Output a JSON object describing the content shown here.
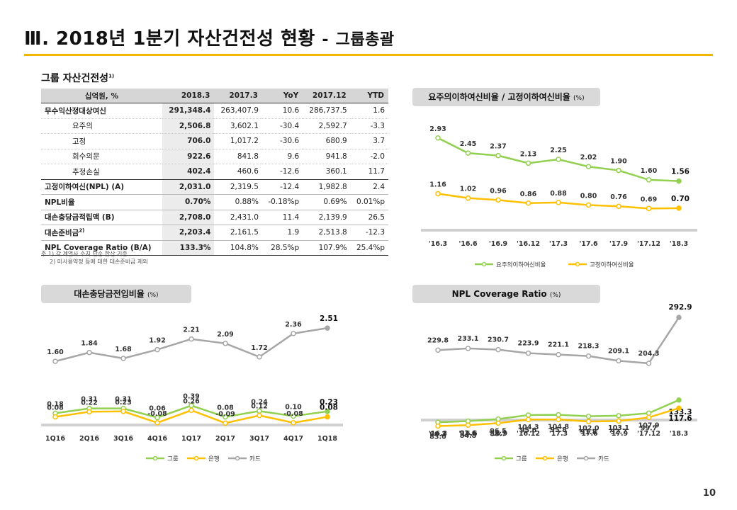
{
  "page": {
    "title": "Ⅲ. 2018년 1분기 자산건전성 현황",
    "title_sep": "-",
    "subtitle": "그룹총괄",
    "section_label": "그룹 자산건전성",
    "section_label_sup": "1)",
    "page_number": "10",
    "accent_color": "#f2b700"
  },
  "asset_table": {
    "headers": [
      "십억원, %",
      "2018.3",
      "2017.3",
      "YoY",
      "2017.12",
      "YTD"
    ],
    "rows": [
      {
        "label": "무수익산정대상여신",
        "values": [
          "291,348.4",
          "263,407.9",
          "10.6",
          "286,737.5",
          "1.6"
        ]
      },
      {
        "label": "요주의",
        "values": [
          "2,506.8",
          "3,602.1",
          "-30.4",
          "2,592.7",
          "-3.3"
        ]
      },
      {
        "label": "고정",
        "values": [
          "706.0",
          "1,017.2",
          "-30.6",
          "680.9",
          "3.7"
        ]
      },
      {
        "label": "회수의문",
        "values": [
          "922.6",
          "841.8",
          "9.6",
          "941.8",
          "-2.0"
        ]
      },
      {
        "label": "추정손실",
        "values": [
          "402.4",
          "460.6",
          "-12.6",
          "360.1",
          "11.7"
        ]
      },
      {
        "label": "고정이하여신(NPL) (A)",
        "values": [
          "2,031.0",
          "2,319.5",
          "-12.4",
          "1,982.8",
          "2.4"
        ]
      },
      {
        "label": "NPL비율",
        "values": [
          "0.70%",
          "0.88%",
          "-0.18%p",
          "0.69%",
          "0.01%p"
        ]
      },
      {
        "label": "대손충당금적립액 (B)",
        "values": [
          "2,708.0",
          "2,431.0",
          "11.4",
          "2,139.9",
          "26.5"
        ]
      },
      {
        "label": "대손준비금",
        "label_sup": "2)",
        "values": [
          "2,203.4",
          "2,161.5",
          "1.9",
          "2,513.8",
          "-12.3"
        ]
      },
      {
        "label": "NPL Coverage Ratio (B/A)",
        "values": [
          "133.3%",
          "104.8%",
          "28.5%p",
          "107.9%",
          "25.4%p"
        ]
      }
    ]
  },
  "footnotes": [
    "주 1) 각 계열사 수치 단순 합산 기준",
    "2) 미사용약정 등에 대한 대손준비금 제외"
  ],
  "chart_data": [
    {
      "type": "line",
      "title": "요주의이하여신비율  / 고정이하여신비율",
      "unit": "(%)",
      "categories": [
        "'16.3",
        "'16.6",
        "'16.9",
        "'16.12",
        "'17.3",
        "'17.6",
        "'17.9",
        "'17.12",
        "'18.3"
      ],
      "ylim": [
        0.0,
        3.6
      ],
      "grid": false,
      "legend_position": "bottom",
      "series": [
        {
          "name": "요주의이하여신비율",
          "color": "#92d050",
          "values": [
            2.93,
            2.45,
            2.37,
            2.13,
            2.25,
            2.02,
            1.9,
            1.6,
            1.56
          ],
          "labels": [
            "2.93",
            "2.45",
            "2.37",
            "2.13",
            "2.25",
            "2.02",
            "1.90",
            "1.60",
            "1.56"
          ]
        },
        {
          "name": "고정이하여신비율",
          "color": "#ffc000",
          "values": [
            1.16,
            1.02,
            0.96,
            0.86,
            0.88,
            0.8,
            0.76,
            0.69,
            0.7
          ],
          "labels": [
            "1.16",
            "1.02",
            "0.96",
            "0.86",
            "0.88",
            "0.80",
            "0.76",
            "0.69",
            "0.70"
          ]
        }
      ]
    },
    {
      "type": "line",
      "title": "대손충당금전입비율",
      "unit": "(%)",
      "categories": [
        "1Q16",
        "2Q16",
        "3Q16",
        "4Q16",
        "1Q17",
        "2Q17",
        "3Q17",
        "4Q17",
        "1Q18"
      ],
      "ylim": [
        -0.2,
        2.9
      ],
      "grid": false,
      "legend_position": "bottom",
      "series": [
        {
          "name": "그룹",
          "color": "#92d050",
          "values": [
            0.18,
            0.31,
            0.31,
            0.06,
            0.39,
            0.08,
            0.24,
            0.1,
            0.23
          ],
          "labels": [
            "0.18",
            "0.31",
            "0.31",
            "0.06",
            "0.39",
            "0.08",
            "0.24",
            "0.10",
            "0.23"
          ]
        },
        {
          "name": "은행",
          "color": "#ffc000",
          "values": [
            0.08,
            0.22,
            0.23,
            -0.08,
            0.26,
            -0.09,
            0.12,
            -0.08,
            0.08
          ],
          "labels": [
            "0.08",
            "0.22",
            "0.23",
            "-0.08",
            "0.26",
            "-0.09",
            "0.12",
            "-0.08",
            "0.08"
          ]
        },
        {
          "name": "카드",
          "color": "#a6a6a6",
          "values": [
            1.6,
            1.84,
            1.68,
            1.92,
            2.21,
            2.09,
            1.72,
            2.36,
            2.51
          ],
          "labels": [
            "1.60",
            "1.84",
            "1.68",
            "1.92",
            "2.21",
            "2.09",
            "1.72",
            "2.36",
            "2.51"
          ]
        }
      ]
    },
    {
      "type": "line",
      "title": "NPL Coverage Ratio",
      "unit": "(%)",
      "categories": [
        "'16.3",
        "'16.6",
        "'16.9",
        "'16.12",
        "'17.3",
        "'17.6",
        "'17.9",
        "'17.12",
        "'18.3"
      ],
      "ylim": [
        70,
        300
      ],
      "grid": false,
      "legend_position": "bottom",
      "series": [
        {
          "name": "그룹",
          "color": "#92d050",
          "values": [
            90.3,
            92.6,
            96.5,
            104.3,
            104.8,
            102.0,
            103.1,
            107.9,
            133.3
          ],
          "labels": [
            "90.3",
            "92.6",
            "96.5",
            "104.3",
            "104.8",
            "102.0",
            "103.1",
            "107.9",
            "133.3"
          ]
        },
        {
          "name": "은행",
          "color": "#ffc000",
          "values": [
            83.0,
            84.8,
            88.7,
            95.6,
            95.8,
            91.8,
            92.7,
            99.7,
            117.6
          ],
          "labels": [
            "83.0",
            "84.8",
            "88.7",
            "95.6",
            "95.8",
            "91.8",
            "92.7",
            "99.7",
            "117.6"
          ]
        },
        {
          "name": "카드",
          "color": "#a6a6a6",
          "values": [
            229.8,
            233.1,
            230.7,
            223.9,
            221.1,
            218.3,
            209.1,
            204.3,
            292.9
          ],
          "labels": [
            "229.8",
            "233.1",
            "230.7",
            "223.9",
            "221.1",
            "218.3",
            "209.1",
            "204.3",
            "292.9"
          ]
        }
      ]
    }
  ]
}
